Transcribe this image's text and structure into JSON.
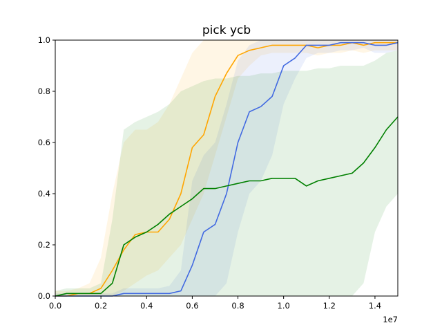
{
  "chart_data": {
    "type": "line",
    "title": "pick ycb",
    "xlabel": "",
    "ylabel": "",
    "x_multiplier_label": "1e7",
    "xlim": [
      0,
      1.5
    ],
    "ylim": [
      0,
      1.0
    ],
    "x_ticks": [
      "0.0",
      "0.2",
      "0.4",
      "0.6",
      "0.8",
      "1.0",
      "1.2",
      "1.4"
    ],
    "y_ticks": [
      "0.0",
      "0.2",
      "0.4",
      "0.6",
      "0.8",
      "1.0"
    ],
    "grid": false,
    "legend": "none",
    "x": [
      0.0,
      0.05,
      0.1,
      0.15,
      0.2,
      0.25,
      0.3,
      0.35,
      0.4,
      0.45,
      0.5,
      0.55,
      0.6,
      0.65,
      0.7,
      0.75,
      0.8,
      0.85,
      0.9,
      0.95,
      1.0,
      1.05,
      1.1,
      1.15,
      1.2,
      1.25,
      1.3,
      1.35,
      1.4,
      1.45,
      1.5
    ],
    "series": [
      {
        "color": "#ffa500",
        "values": [
          0.0,
          0.0,
          0.01,
          0.01,
          0.03,
          0.1,
          0.18,
          0.24,
          0.25,
          0.25,
          0.3,
          0.4,
          0.58,
          0.63,
          0.78,
          0.87,
          0.94,
          0.96,
          0.97,
          0.98,
          0.98,
          0.98,
          0.98,
          0.97,
          0.98,
          0.98,
          0.99,
          0.98,
          0.99,
          0.99,
          0.99
        ],
        "lower": [
          0.0,
          0.0,
          0.0,
          0.0,
          0.0,
          0.0,
          0.02,
          0.05,
          0.08,
          0.1,
          0.15,
          0.2,
          0.3,
          0.4,
          0.55,
          0.7,
          0.85,
          0.9,
          0.94,
          0.95,
          0.95,
          0.95,
          0.95,
          0.94,
          0.95,
          0.95,
          0.96,
          0.95,
          0.96,
          0.96,
          0.96
        ],
        "upper": [
          0.02,
          0.02,
          0.03,
          0.05,
          0.15,
          0.4,
          0.6,
          0.65,
          0.65,
          0.68,
          0.75,
          0.85,
          0.95,
          1.0,
          1.0,
          1.0,
          1.0,
          1.0,
          1.0,
          1.0,
          1.0,
          1.0,
          1.0,
          1.0,
          1.0,
          1.0,
          1.0,
          1.0,
          1.0,
          1.0,
          1.0
        ]
      },
      {
        "color": "#4169e1",
        "values": [
          0.0,
          0.0,
          0.0,
          0.0,
          0.0,
          0.0,
          0.01,
          0.01,
          0.01,
          0.01,
          0.01,
          0.02,
          0.12,
          0.25,
          0.28,
          0.4,
          0.6,
          0.72,
          0.74,
          0.78,
          0.9,
          0.93,
          0.98,
          0.98,
          0.98,
          0.99,
          0.99,
          0.99,
          0.98,
          0.98,
          0.99
        ],
        "lower": [
          0.0,
          0.0,
          0.0,
          0.0,
          0.0,
          0.0,
          0.0,
          0.0,
          0.0,
          0.0,
          0.0,
          0.0,
          0.0,
          0.0,
          0.0,
          0.05,
          0.25,
          0.4,
          0.45,
          0.55,
          0.75,
          0.85,
          0.93,
          0.95,
          0.95,
          0.96,
          0.96,
          0.97,
          0.95,
          0.95,
          0.96
        ],
        "upper": [
          0.01,
          0.01,
          0.01,
          0.01,
          0.01,
          0.01,
          0.03,
          0.03,
          0.03,
          0.03,
          0.04,
          0.1,
          0.45,
          0.55,
          0.6,
          0.75,
          0.92,
          0.98,
          1.0,
          1.0,
          1.0,
          1.0,
          1.0,
          1.0,
          1.0,
          1.0,
          1.0,
          1.0,
          1.0,
          1.0,
          1.0
        ]
      },
      {
        "color": "#008000",
        "values": [
          0.0,
          0.01,
          0.01,
          0.01,
          0.01,
          0.05,
          0.2,
          0.23,
          0.25,
          0.28,
          0.32,
          0.35,
          0.38,
          0.42,
          0.42,
          0.43,
          0.44,
          0.45,
          0.45,
          0.46,
          0.46,
          0.46,
          0.43,
          0.45,
          0.46,
          0.47,
          0.48,
          0.52,
          0.58,
          0.65,
          0.7
        ],
        "lower": [
          0.0,
          0.0,
          0.0,
          0.0,
          0.0,
          0.0,
          0.0,
          0.0,
          0.0,
          0.0,
          0.0,
          0.0,
          0.0,
          0.0,
          0.0,
          0.0,
          0.0,
          0.0,
          0.0,
          0.0,
          0.0,
          0.0,
          0.0,
          0.0,
          0.0,
          0.0,
          0.0,
          0.05,
          0.25,
          0.35,
          0.4
        ],
        "upper": [
          0.02,
          0.03,
          0.03,
          0.03,
          0.05,
          0.3,
          0.65,
          0.68,
          0.7,
          0.72,
          0.75,
          0.8,
          0.82,
          0.84,
          0.85,
          0.85,
          0.86,
          0.86,
          0.87,
          0.87,
          0.88,
          0.88,
          0.88,
          0.89,
          0.89,
          0.9,
          0.9,
          0.9,
          0.92,
          0.95,
          0.96
        ]
      }
    ]
  }
}
